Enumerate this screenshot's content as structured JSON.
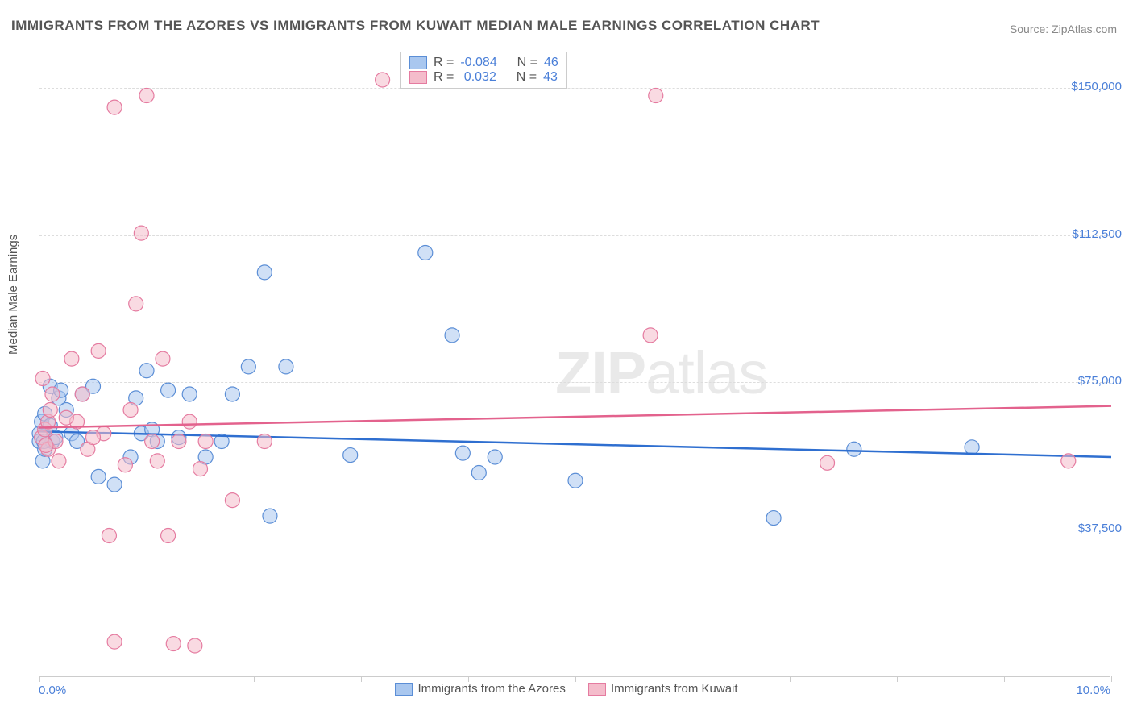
{
  "title": "IMMIGRANTS FROM THE AZORES VS IMMIGRANTS FROM KUWAIT MEDIAN MALE EARNINGS CORRELATION CHART",
  "source_prefix": "Source: ",
  "source_name": "ZipAtlas.com",
  "y_axis_label": "Median Male Earnings",
  "watermark": {
    "bold": "ZIP",
    "rest": "atlas"
  },
  "chart": {
    "type": "scatter",
    "xlim": [
      0.0,
      10.0
    ],
    "ylim": [
      0,
      160000
    ],
    "x_ticks": [
      0.0,
      1.0,
      2.0,
      3.0,
      4.0,
      5.0,
      6.0,
      7.0,
      8.0,
      9.0,
      10.0
    ],
    "x_tick_labels": {
      "0": "0.0%",
      "10": "10.0%"
    },
    "y_gridlines": [
      37500,
      75000,
      112500,
      150000
    ],
    "y_tick_labels": [
      "$37,500",
      "$75,000",
      "$112,500",
      "$150,000"
    ],
    "background_color": "#ffffff",
    "grid_color": "#dddddd",
    "axis_color": "#cccccc",
    "marker_radius": 9,
    "marker_opacity": 0.55,
    "line_width": 2.5,
    "series": [
      {
        "key": "azores",
        "label": "Immigrants from the Azores",
        "fill": "#a9c7ef",
        "stroke": "#5b8ed6",
        "line_color": "#2f6fd0",
        "R": "-0.084",
        "N": "46",
        "trend": {
          "y_at_x0": 62500,
          "y_at_x10": 56000
        },
        "points": [
          {
            "x": 0.0,
            "y": 62000
          },
          {
            "x": 0.0,
            "y": 60000
          },
          {
            "x": 0.02,
            "y": 65000
          },
          {
            "x": 0.03,
            "y": 55000
          },
          {
            "x": 0.05,
            "y": 58000
          },
          {
            "x": 0.05,
            "y": 67000
          },
          {
            "x": 0.1,
            "y": 74000
          },
          {
            "x": 0.1,
            "y": 64000
          },
          {
            "x": 0.12,
            "y": 60000
          },
          {
            "x": 0.15,
            "y": 61000
          },
          {
            "x": 0.18,
            "y": 71000
          },
          {
            "x": 0.2,
            "y": 73000
          },
          {
            "x": 0.25,
            "y": 68000
          },
          {
            "x": 0.3,
            "y": 62000
          },
          {
            "x": 0.35,
            "y": 60000
          },
          {
            "x": 0.4,
            "y": 72000
          },
          {
            "x": 0.5,
            "y": 74000
          },
          {
            "x": 0.55,
            "y": 51000
          },
          {
            "x": 0.7,
            "y": 49000
          },
          {
            "x": 0.85,
            "y": 56000
          },
          {
            "x": 0.9,
            "y": 71000
          },
          {
            "x": 0.95,
            "y": 62000
          },
          {
            "x": 1.0,
            "y": 78000
          },
          {
            "x": 1.05,
            "y": 63000
          },
          {
            "x": 1.1,
            "y": 60000
          },
          {
            "x": 1.2,
            "y": 73000
          },
          {
            "x": 1.3,
            "y": 61000
          },
          {
            "x": 1.4,
            "y": 72000
          },
          {
            "x": 1.55,
            "y": 56000
          },
          {
            "x": 1.7,
            "y": 60000
          },
          {
            "x": 1.8,
            "y": 72000
          },
          {
            "x": 1.95,
            "y": 79000
          },
          {
            "x": 2.1,
            "y": 103000
          },
          {
            "x": 2.15,
            "y": 41000
          },
          {
            "x": 2.3,
            "y": 79000
          },
          {
            "x": 2.9,
            "y": 56500
          },
          {
            "x": 3.6,
            "y": 108000
          },
          {
            "x": 3.85,
            "y": 87000
          },
          {
            "x": 3.95,
            "y": 57000
          },
          {
            "x": 4.1,
            "y": 52000
          },
          {
            "x": 4.25,
            "y": 56000
          },
          {
            "x": 5.0,
            "y": 50000
          },
          {
            "x": 6.85,
            "y": 40500
          },
          {
            "x": 7.6,
            "y": 58000
          },
          {
            "x": 8.7,
            "y": 58500
          },
          {
            "x": 0.04,
            "y": 60000
          }
        ]
      },
      {
        "key": "kuwait",
        "label": "Immigrants from Kuwait",
        "fill": "#f4bccb",
        "stroke": "#e57ba0",
        "line_color": "#e3628d",
        "R": "0.032",
        "N": "43",
        "trend": {
          "y_at_x0": 63500,
          "y_at_x10": 69000
        },
        "points": [
          {
            "x": 0.02,
            "y": 61000
          },
          {
            "x": 0.03,
            "y": 76000
          },
          {
            "x": 0.05,
            "y": 63000
          },
          {
            "x": 0.08,
            "y": 58000
          },
          {
            "x": 0.08,
            "y": 65000
          },
          {
            "x": 0.1,
            "y": 68000
          },
          {
            "x": 0.12,
            "y": 72000
          },
          {
            "x": 0.15,
            "y": 60000
          },
          {
            "x": 0.18,
            "y": 55000
          },
          {
            "x": 0.3,
            "y": 81000
          },
          {
            "x": 0.35,
            "y": 65000
          },
          {
            "x": 0.4,
            "y": 72000
          },
          {
            "x": 0.45,
            "y": 58000
          },
          {
            "x": 0.55,
            "y": 83000
          },
          {
            "x": 0.6,
            "y": 62000
          },
          {
            "x": 0.65,
            "y": 36000
          },
          {
            "x": 0.7,
            "y": 145000
          },
          {
            "x": 0.7,
            "y": 9000
          },
          {
            "x": 0.8,
            "y": 54000
          },
          {
            "x": 0.85,
            "y": 68000
          },
          {
            "x": 0.9,
            "y": 95000
          },
          {
            "x": 0.95,
            "y": 113000
          },
          {
            "x": 1.0,
            "y": 148000
          },
          {
            "x": 1.05,
            "y": 60000
          },
          {
            "x": 1.1,
            "y": 55000
          },
          {
            "x": 1.15,
            "y": 81000
          },
          {
            "x": 1.2,
            "y": 36000
          },
          {
            "x": 1.25,
            "y": 8500
          },
          {
            "x": 1.3,
            "y": 60000
          },
          {
            "x": 1.4,
            "y": 65000
          },
          {
            "x": 1.45,
            "y": 8000
          },
          {
            "x": 1.5,
            "y": 53000
          },
          {
            "x": 1.55,
            "y": 60000
          },
          {
            "x": 1.8,
            "y": 45000
          },
          {
            "x": 2.1,
            "y": 60000
          },
          {
            "x": 3.2,
            "y": 152000
          },
          {
            "x": 5.7,
            "y": 87000
          },
          {
            "x": 5.75,
            "y": 148000
          },
          {
            "x": 7.35,
            "y": 54500
          },
          {
            "x": 9.6,
            "y": 55000
          },
          {
            "x": 0.5,
            "y": 61000
          },
          {
            "x": 0.25,
            "y": 66000
          },
          {
            "x": 0.06,
            "y": 59000
          }
        ]
      }
    ]
  },
  "legend_top": {
    "R_label": "R =",
    "N_label": "N ="
  }
}
